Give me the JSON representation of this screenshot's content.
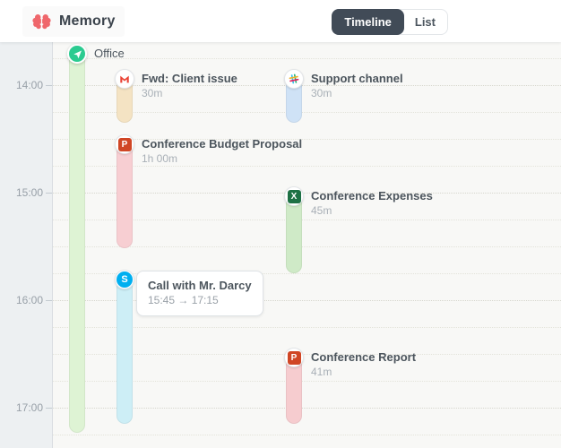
{
  "header": {
    "app_name": "Memory",
    "view_toggle": {
      "options": [
        "Timeline",
        "List"
      ],
      "selected": "Timeline"
    }
  },
  "brand": {
    "logo_color": "#ef676c"
  },
  "timeline": {
    "axis_labels": [
      "14:00",
      "15:00",
      "16:00",
      "17:00"
    ],
    "group": {
      "label": "Office",
      "icon": "location-arrow-icon",
      "accent_color": "#2bcb90",
      "bar_color": "#def3d4"
    },
    "events": [
      {
        "app": "gmail",
        "icon": "gmail-icon",
        "title": "Fwd: Client issue",
        "duration": "30m",
        "bar_color": "#f4e3c3",
        "icon_color": "#ea4335"
      },
      {
        "app": "slack",
        "icon": "slack-icon",
        "title": "Support channel",
        "duration": "30m",
        "bar_color": "#cfe2f6"
      },
      {
        "app": "powerpoint",
        "icon": "powerpoint-icon",
        "title": "Conference Budget Proposal",
        "duration": "1h 00m",
        "bar_color": "#f7ced2",
        "icon_color": "#d04625",
        "icon_letter": "P"
      },
      {
        "app": "excel",
        "icon": "excel-icon",
        "title": "Conference Expenses",
        "duration": "45m",
        "bar_color": "#cfeac7",
        "icon_color": "#1e7145",
        "icon_letter": "X"
      },
      {
        "app": "skype",
        "icon": "skype-icon",
        "title": "Call with Mr. Darcy",
        "time_range": "15:45 → 17:15",
        "bar_color": "#cdeef6",
        "icon_color": "#00aff0",
        "icon_letter": "S"
      },
      {
        "app": "powerpoint",
        "icon": "powerpoint-icon",
        "title": "Conference Report",
        "duration": "41m",
        "bar_color": "#f6cccf",
        "icon_color": "#d04625",
        "icon_letter": "P"
      }
    ],
    "slack_colors": {
      "blue": "#36c5f0",
      "green": "#2eb67d",
      "yellow": "#ecb22e",
      "red": "#e01e5a"
    }
  }
}
